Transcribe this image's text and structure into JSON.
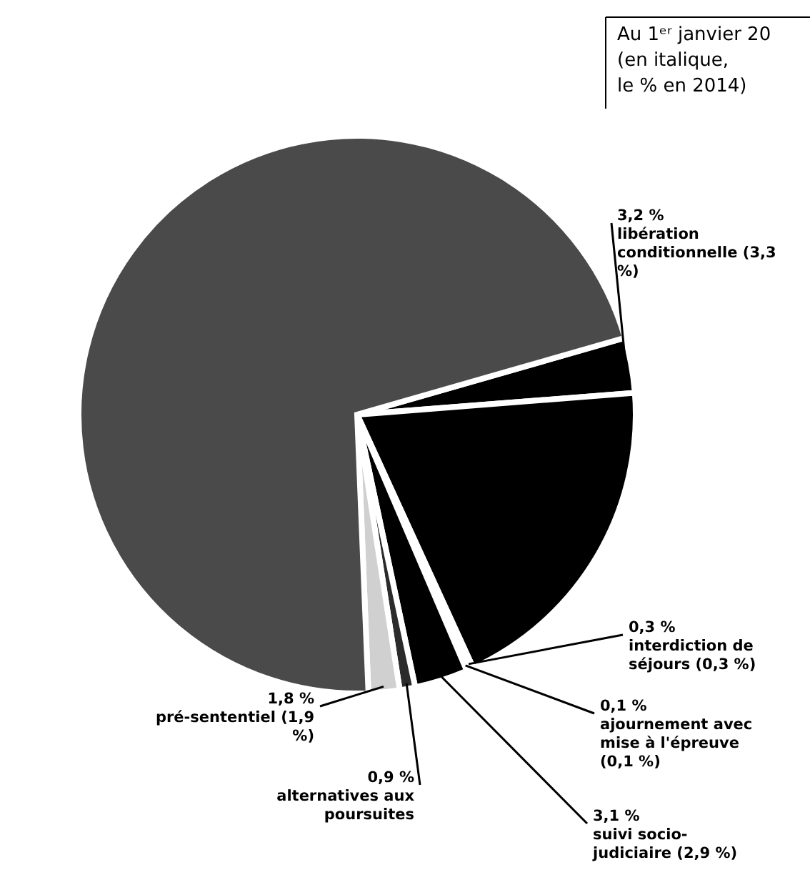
{
  "chart_data": {
    "type": "pie",
    "title": "Au 1ᵉʳ janvier 20",
    "subtitle": "(en italique, le % en 2014)",
    "categories": [
      "libération conditionnelle (3,3 %)",
      null,
      "interdiction de séjours (0,3 %)",
      "ajournement avec mise à l'épreuve (0,1 %)",
      "suivi socio-judiciaire (2,9 %)",
      "alternatives aux poursuites",
      "pré-sententiel (1,9 %)",
      null
    ],
    "values": [
      3.2,
      19.4,
      0.3,
      0.1,
      3.1,
      0.9,
      1.8,
      71.2
    ],
    "value_labels": [
      "3,2 %",
      null,
      "0,3 %",
      "0,1 %",
      "3,1 %",
      "0,9 %",
      "1,8 %",
      null
    ],
    "colors": [
      "#000000",
      "#000000",
      "#000000",
      "#000000",
      "#000000",
      "#2b2b2b",
      "#d0d0d0",
      "#4a4a4a"
    ]
  }
}
